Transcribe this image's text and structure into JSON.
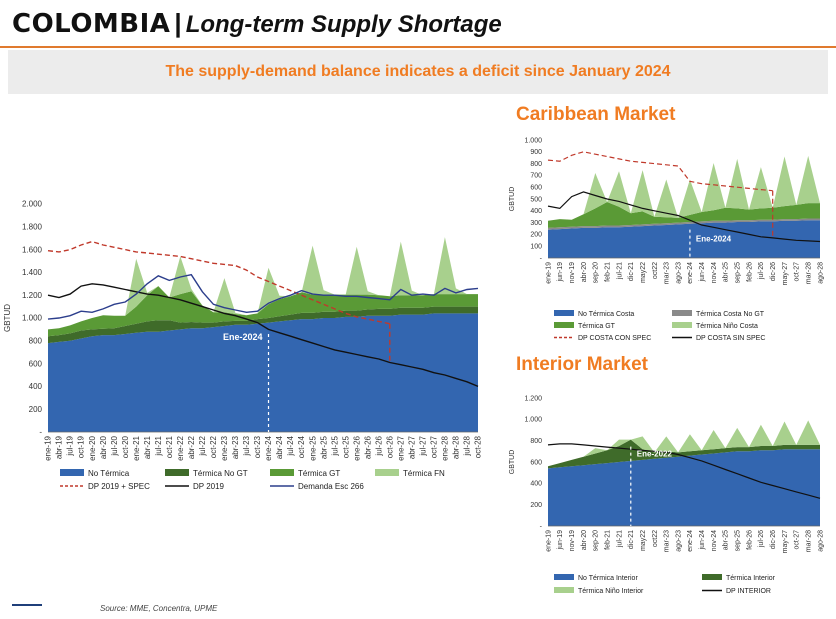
{
  "header": {
    "country": "COLOMBIA",
    "separator": "|",
    "subtitle": "Long-term Supply Shortage",
    "banner": "The supply-demand balance indicates a deficit since January 2024"
  },
  "markets": {
    "caribbean_title": "Caribbean Market",
    "interior_title": "Interior Market"
  },
  "footer": {
    "source": "Source: MME, Concentra, UPME"
  },
  "colors": {
    "accent": "#f07c22",
    "blue": "#3366b0",
    "dark_green": "#3f6b2a",
    "green": "#5a9a36",
    "light_green": "#a8d08d",
    "gray": "#8a8a8a",
    "red_dashed": "#c0392b",
    "black": "#111111",
    "navy": "#2c3e8c"
  },
  "chart_data": [
    {
      "id": "national",
      "type": "area",
      "ylabel": "GBTUD",
      "xlabel": "",
      "ylim": [
        0,
        2000
      ],
      "yticks": [
        "-",
        "200",
        "400",
        "600",
        "800",
        "1.000",
        "1.200",
        "1.400",
        "1.600",
        "1.800",
        "2.000"
      ],
      "x_ticks": [
        "ene-19",
        "abr-19",
        "jul-19",
        "oct-19",
        "ene-20",
        "abr-20",
        "jul-20",
        "oct-20",
        "ene-21",
        "abr-21",
        "jul-21",
        "oct-21",
        "ene-22",
        "abr-22",
        "jul-22",
        "oct-22",
        "ene-23",
        "abr-23",
        "jul-23",
        "oct-23",
        "ene-24",
        "abr-24",
        "jul-24",
        "oct-24",
        "ene-25",
        "abr-25",
        "jul-25",
        "oct-25",
        "ene-26",
        "abr-26",
        "jul-26",
        "oct-26",
        "ene-27",
        "abr-27",
        "jul-27",
        "oct-27",
        "ene-28",
        "abr-28",
        "jul-28",
        "oct-28"
      ],
      "annotation": {
        "label": "Ene-2024",
        "at": "ene-24"
      },
      "stacked": [
        {
          "name": "No Térmica",
          "values": [
            780,
            790,
            800,
            820,
            840,
            850,
            850,
            860,
            870,
            880,
            880,
            890,
            900,
            910,
            910,
            920,
            930,
            940,
            940,
            950,
            960,
            970,
            980,
            990,
            990,
            1000,
            1000,
            1010,
            1010,
            1020,
            1020,
            1020,
            1030,
            1030,
            1030,
            1040,
            1040,
            1040,
            1040,
            1040
          ]
        },
        {
          "name": "Térmica No GT",
          "values": [
            60,
            60,
            65,
            70,
            60,
            55,
            60,
            70,
            80,
            90,
            100,
            90,
            60,
            55,
            50,
            40,
            40,
            35,
            35,
            40,
            40,
            45,
            50,
            55,
            55,
            55,
            55,
            55,
            55,
            55,
            60,
            60,
            60,
            60,
            60,
            60,
            60,
            60,
            60,
            60
          ]
        },
        {
          "name": "Térmica GT",
          "values": [
            60,
            60,
            70,
            80,
            100,
            120,
            110,
            90,
            150,
            230,
            300,
            200,
            250,
            270,
            150,
            90,
            80,
            60,
            50,
            50,
            120,
            150,
            160,
            180,
            160,
            150,
            150,
            140,
            140,
            130,
            120,
            110,
            110,
            110,
            110,
            110,
            110,
            110,
            110,
            110
          ]
        },
        {
          "name": "Térmica FN",
          "values": [
            0,
            0,
            0,
            0,
            0,
            0,
            0,
            0,
            420,
            20,
            0,
            0,
            330,
            20,
            0,
            0,
            300,
            10,
            0,
            0,
            320,
            30,
            0,
            0,
            430,
            40,
            0,
            0,
            420,
            30,
            0,
            0,
            470,
            40,
            0,
            0,
            500,
            50,
            0,
            0
          ]
        }
      ],
      "lines": [
        {
          "name": "DP 2019 + SPEC",
          "style": "dashed",
          "values": [
            1590,
            1580,
            1600,
            1640,
            1670,
            1640,
            1620,
            1600,
            1580,
            1570,
            1560,
            1550,
            1540,
            1520,
            1500,
            1480,
            1470,
            1460,
            1420,
            1360,
            1320,
            1280,
            1240,
            1200,
            1160,
            1120,
            1080,
            1040,
            1010,
            990,
            970,
            950,
            null,
            null,
            null,
            null,
            null,
            null,
            null,
            null
          ]
        },
        {
          "name": "DP 2019",
          "style": "solid",
          "values": [
            1200,
            1180,
            1210,
            1280,
            1300,
            1290,
            1270,
            1250,
            1230,
            1210,
            1200,
            1180,
            1160,
            1130,
            1100,
            1070,
            1040,
            1020,
            990,
            960,
            900,
            870,
            840,
            810,
            780,
            750,
            720,
            700,
            680,
            660,
            640,
            610,
            590,
            570,
            550,
            520,
            500,
            470,
            440,
            400
          ]
        },
        {
          "name": "Demanda Esc 266",
          "style": "solid",
          "values": [
            990,
            1000,
            1020,
            1060,
            1050,
            1080,
            1120,
            1140,
            1210,
            1300,
            1370,
            1330,
            1360,
            1380,
            1230,
            1120,
            1090,
            1070,
            1050,
            1060,
            1130,
            1170,
            1200,
            1240,
            1210,
            1200,
            1200,
            1190,
            1190,
            1180,
            1170,
            1160,
            1250,
            1200,
            1210,
            1200,
            1260,
            1220,
            1250,
            1260
          ]
        }
      ],
      "legend": [
        "No Térmica",
        "Térmica No GT",
        "Térmica GT",
        "Térmica FN",
        "DP 2019 + SPEC",
        "DP 2019",
        "Demanda Esc 266"
      ],
      "legend_position": "bottom"
    },
    {
      "id": "caribbean",
      "type": "area",
      "ylabel": "GBTUD",
      "xlabel": "",
      "ylim": [
        0,
        1000
      ],
      "yticks": [
        "-",
        "100",
        "200",
        "300",
        "400",
        "500",
        "600",
        "700",
        "800",
        "900",
        "1.000"
      ],
      "x_ticks": [
        "ene-19",
        "jun-19",
        "nov-19",
        "abr-20",
        "sep-20",
        "feb-21",
        "jul-21",
        "dic-21",
        "may22",
        "oct22",
        "mar-23",
        "ago-23",
        "ene-24",
        "jun-24",
        "nov-24",
        "abr-25",
        "sep-25",
        "feb-26",
        "jul-26",
        "dic-26",
        "may-27",
        "oct-27",
        "mar-28",
        "ago-28"
      ],
      "annotation": {
        "label": "Ene-2024",
        "at": "ene-24"
      },
      "stacked": [
        {
          "name": "No Térmica Costa",
          "values": [
            240,
            245,
            250,
            255,
            255,
            260,
            260,
            265,
            270,
            275,
            280,
            285,
            290,
            295,
            300,
            300,
            305,
            305,
            310,
            310,
            315,
            315,
            320,
            320
          ]
        },
        {
          "name": "Térmica Costa No GT",
          "values": [
            15,
            15,
            15,
            15,
            15,
            15,
            15,
            15,
            15,
            15,
            15,
            15,
            15,
            15,
            15,
            15,
            15,
            15,
            15,
            15,
            15,
            15,
            15,
            15
          ]
        },
        {
          "name": "Térmica GT",
          "values": [
            60,
            70,
            60,
            100,
            150,
            200,
            160,
            100,
            110,
            60,
            50,
            40,
            60,
            80,
            90,
            110,
            100,
            90,
            95,
            100,
            110,
            120,
            130,
            130
          ]
        },
        {
          "name": "Térmica Niño Costa",
          "values": [
            0,
            0,
            0,
            0,
            300,
            0,
            300,
            0,
            350,
            0,
            320,
            0,
            300,
            0,
            400,
            0,
            420,
            0,
            350,
            0,
            420,
            0,
            400,
            0
          ]
        }
      ],
      "lines": [
        {
          "name": "DP COSTA CON SPEC",
          "style": "dashed",
          "values": [
            830,
            820,
            870,
            900,
            880,
            860,
            840,
            820,
            810,
            800,
            790,
            780,
            650,
            630,
            620,
            610,
            600,
            590,
            580,
            570,
            null,
            null,
            null,
            null
          ]
        },
        {
          "name": "DP COSTA SIN SPEC",
          "style": "solid",
          "values": [
            440,
            420,
            520,
            560,
            530,
            500,
            480,
            450,
            420,
            400,
            380,
            360,
            320,
            280,
            260,
            240,
            220,
            200,
            180,
            170,
            160,
            150,
            145,
            140
          ]
        }
      ],
      "legend": [
        "No Térmica Costa",
        "Térmica Costa No GT",
        "Térmica GT",
        "Térmica Niño Costa",
        "DP COSTA CON SPEC",
        "DP COSTA SIN SPEC"
      ],
      "legend_position": "bottom"
    },
    {
      "id": "interior",
      "type": "area",
      "ylabel": "GBTUD",
      "xlabel": "",
      "ylim": [
        0,
        1200
      ],
      "yticks": [
        "-",
        "200",
        "400",
        "600",
        "800",
        "1.000",
        "1.200"
      ],
      "x_ticks": [
        "ene-19",
        "jun-19",
        "nov-19",
        "abr-20",
        "sep-20",
        "feb-21",
        "jul-21",
        "dic-21",
        "may22",
        "oct22",
        "mar-23",
        "ago-23",
        "ene-24",
        "jun-24",
        "nov-24",
        "abr-25",
        "sep-25",
        "feb-26",
        "jul-26",
        "dic-26",
        "may-27",
        "oct-27",
        "mar-28",
        "ago-28"
      ],
      "annotation": {
        "label": "Ene-2022",
        "at": "dic-21"
      },
      "stacked": [
        {
          "name": "No Térmica Interior",
          "values": [
            540,
            550,
            560,
            570,
            580,
            590,
            600,
            610,
            620,
            630,
            640,
            650,
            660,
            670,
            680,
            690,
            700,
            700,
            710,
            710,
            720,
            720,
            720,
            720
          ]
        },
        {
          "name": "Térmica Interior",
          "values": [
            20,
            40,
            60,
            80,
            100,
            120,
            150,
            200,
            100,
            60,
            60,
            40,
            40,
            40,
            40,
            40,
            40,
            40,
            40,
            40,
            40,
            40,
            40,
            40
          ]
        },
        {
          "name": "Térmica Niño Interior",
          "values": [
            0,
            0,
            0,
            0,
            50,
            0,
            60,
            0,
            120,
            0,
            140,
            0,
            160,
            0,
            180,
            0,
            180,
            0,
            200,
            0,
            220,
            0,
            230,
            0
          ]
        }
      ],
      "lines": [
        {
          "name": "DP INTERIOR",
          "style": "solid",
          "values": [
            760,
            770,
            770,
            760,
            750,
            740,
            730,
            720,
            710,
            700,
            690,
            670,
            640,
            610,
            570,
            530,
            490,
            450,
            410,
            380,
            350,
            320,
            290,
            260
          ]
        }
      ],
      "legend": [
        "No Térmica Interior",
        "Térmica Interior",
        "Térmica Niño Interior",
        "DP INTERIOR"
      ],
      "legend_position": "bottom"
    }
  ]
}
